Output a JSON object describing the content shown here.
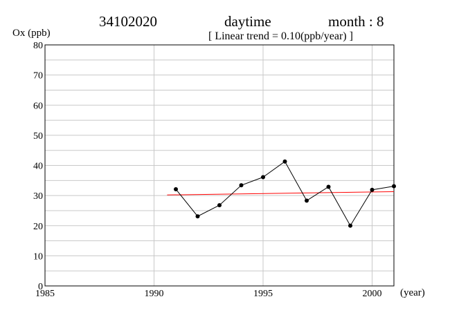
{
  "header": {
    "station": "34102020",
    "period": "daytime",
    "month": "month : 8",
    "trend": "[ Linear trend = 0.10(ppb/year) ]"
  },
  "chart_data": {
    "type": "line",
    "ylabel": "Ox (ppb)",
    "xlabel": "(year)",
    "xlim": [
      1985,
      2001
    ],
    "ylim": [
      0,
      80
    ],
    "x_ticks": [
      1985,
      1990,
      1995,
      2000
    ],
    "y_ticks": [
      0,
      10,
      20,
      30,
      40,
      50,
      60,
      70,
      80
    ],
    "grid": true,
    "series": [
      {
        "x": [
          1991,
          1992,
          1993,
          1994,
          1995,
          1996,
          1997,
          1998,
          1999,
          2000,
          2001
        ],
        "values": [
          32.1,
          23.1,
          26.8,
          33.4,
          36.1,
          41.3,
          28.3,
          32.9,
          20.0,
          31.9,
          33.1
        ],
        "color": "#000000"
      }
    ],
    "trend_line": {
      "x": [
        1990.6,
        2001
      ],
      "values": [
        30.2,
        31.3
      ],
      "color": "#ff0000"
    }
  }
}
